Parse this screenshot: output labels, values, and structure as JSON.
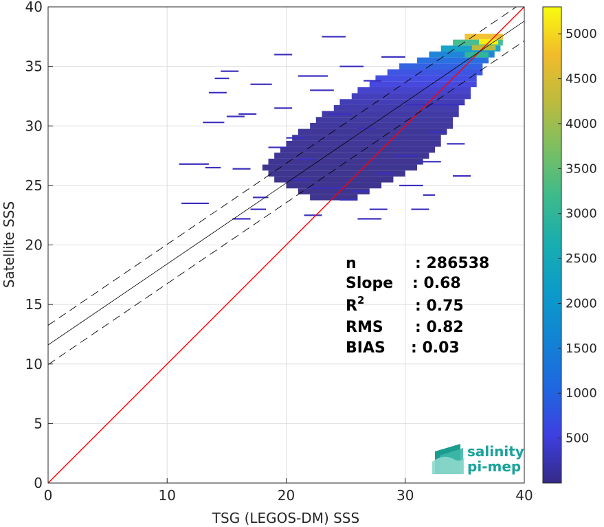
{
  "chart_data": {
    "type": "heatmap",
    "xlabel": "TSG (LEGOS-DM) SSS",
    "ylabel": "Satellite SSS",
    "xlim": [
      0,
      40
    ],
    "ylim": [
      0,
      40
    ],
    "x_ticks": [
      0,
      10,
      20,
      30,
      40
    ],
    "y_ticks": [
      0,
      5,
      10,
      15,
      20,
      25,
      30,
      35,
      40
    ],
    "grid": true,
    "colorbar": {
      "colormap": "parula",
      "range": [
        0,
        5300
      ],
      "ticks": [
        500,
        1000,
        1500,
        2000,
        2500,
        3000,
        3500,
        4000,
        4500,
        5000
      ]
    },
    "reference_line": {
      "name": "1:1",
      "color": "#ff0000",
      "points": [
        [
          0,
          0
        ],
        [
          40,
          40
        ]
      ]
    },
    "regression_line": {
      "slope": 0.68,
      "intercept": 11.6,
      "color": "#000000"
    },
    "confidence_lines": {
      "offset": 1.65,
      "style": "dashed",
      "color": "#000000"
    },
    "density_bands": [
      {
        "y": 37.5,
        "x0": 35.0,
        "x1": 38.2,
        "count": 4800
      },
      {
        "y": 37.0,
        "x0": 34.0,
        "x1": 38.2,
        "count": 3200
      },
      {
        "y": 36.5,
        "x0": 33.0,
        "x1": 38.0,
        "count": 2200
      },
      {
        "y": 36.0,
        "x0": 32.0,
        "x1": 37.5,
        "count": 1500
      },
      {
        "y": 35.5,
        "x0": 31.0,
        "x1": 37.0,
        "count": 1100
      },
      {
        "y": 35.0,
        "x0": 29.5,
        "x1": 36.5,
        "count": 900
      },
      {
        "y": 34.5,
        "x0": 28.5,
        "x1": 36.5,
        "count": 700
      },
      {
        "y": 34.0,
        "x0": 27.5,
        "x1": 36.0,
        "count": 600
      },
      {
        "y": 33.5,
        "x0": 27.0,
        "x1": 36.0,
        "count": 500
      },
      {
        "y": 33.0,
        "x0": 26.0,
        "x1": 35.5,
        "count": 400
      },
      {
        "y": 32.5,
        "x0": 25.5,
        "x1": 35.5,
        "count": 300
      },
      {
        "y": 32.0,
        "x0": 24.5,
        "x1": 35.0,
        "count": 250
      },
      {
        "y": 31.5,
        "x0": 24.0,
        "x1": 34.5,
        "count": 200
      },
      {
        "y": 31.0,
        "x0": 23.0,
        "x1": 34.5,
        "count": 150
      },
      {
        "y": 30.5,
        "x0": 22.5,
        "x1": 34.0,
        "count": 120
      },
      {
        "y": 30.0,
        "x0": 22.0,
        "x1": 34.0,
        "count": 100
      },
      {
        "y": 29.5,
        "x0": 21.0,
        "x1": 33.5,
        "count": 80
      },
      {
        "y": 29.0,
        "x0": 20.5,
        "x1": 33.0,
        "count": 70
      },
      {
        "y": 28.5,
        "x0": 20.0,
        "x1": 33.0,
        "count": 60
      },
      {
        "y": 28.0,
        "x0": 19.5,
        "x1": 32.5,
        "count": 50
      },
      {
        "y": 27.5,
        "x0": 19.0,
        "x1": 32.0,
        "count": 40
      },
      {
        "y": 27.0,
        "x0": 18.5,
        "x1": 31.5,
        "count": 30
      },
      {
        "y": 26.5,
        "x0": 18.0,
        "x1": 31.0,
        "count": 20
      },
      {
        "y": 26.0,
        "x0": 18.5,
        "x1": 30.0,
        "count": 20
      },
      {
        "y": 25.5,
        "x0": 19.0,
        "x1": 29.0,
        "count": 10
      },
      {
        "y": 25.0,
        "x0": 20.0,
        "x1": 28.0,
        "count": 10
      },
      {
        "y": 24.5,
        "x0": 21.0,
        "x1": 27.0,
        "count": 10
      },
      {
        "y": 24.0,
        "x0": 22.0,
        "x1": 26.0,
        "count": 10
      }
    ],
    "scatter_segments": [
      [
        11.2,
        23.5,
        13.5
      ],
      [
        17.2,
        24.0,
        18.5
      ],
      [
        14.5,
        34.6,
        16.0
      ],
      [
        17.0,
        33.5,
        18.8
      ],
      [
        23.0,
        37.5,
        25.0
      ],
      [
        19.0,
        36.0,
        20.5
      ],
      [
        30.0,
        31.8,
        35.0
      ],
      [
        21.0,
        34.2,
        23.5
      ],
      [
        13.5,
        32.8,
        15.0
      ],
      [
        16.0,
        31.0,
        17.5
      ],
      [
        15.0,
        30.8,
        16.5
      ],
      [
        13.0,
        30.3,
        14.8
      ],
      [
        11.0,
        26.8,
        13.5
      ],
      [
        13.2,
        26.5,
        14.5
      ],
      [
        15.5,
        26.4,
        17.0
      ],
      [
        17.0,
        23.0,
        18.3
      ],
      [
        15.5,
        22.2,
        17.0
      ],
      [
        21.5,
        22.5,
        23.0
      ],
      [
        22.0,
        24.8,
        25.0
      ],
      [
        26.0,
        22.2,
        28.0
      ],
      [
        24.5,
        23.8,
        26.0
      ],
      [
        27.5,
        26.0,
        29.0
      ],
      [
        29.5,
        25.0,
        31.5
      ],
      [
        29.0,
        27.5,
        31.0
      ],
      [
        30.5,
        23.0,
        32.0
      ],
      [
        31.0,
        27.0,
        33.0
      ],
      [
        32.0,
        29.5,
        33.5
      ],
      [
        33.5,
        28.5,
        35.0
      ],
      [
        20.0,
        29.0,
        21.5
      ],
      [
        18.5,
        28.2,
        20.0
      ],
      [
        19.0,
        31.5,
        20.5
      ],
      [
        22.0,
        33.0,
        24.0
      ],
      [
        24.5,
        35.0,
        26.5
      ],
      [
        26.5,
        33.8,
        28.0
      ],
      [
        28.0,
        35.8,
        30.0
      ],
      [
        20.5,
        25.5,
        22.0
      ],
      [
        25.5,
        24.5,
        27.0
      ],
      [
        14.0,
        34.0,
        15.2
      ],
      [
        26.0,
        29.8,
        27.5
      ],
      [
        23.5,
        31.0,
        25.5
      ],
      [
        34.0,
        25.8,
        35.5
      ],
      [
        31.5,
        24.2,
        32.5
      ],
      [
        27.0,
        23.0,
        28.5
      ],
      [
        21.0,
        27.2,
        22.5
      ]
    ],
    "stats": [
      {
        "label": "n",
        "value": ": 286538"
      },
      {
        "label": "Slope",
        "value": ": 0.68"
      },
      {
        "label": "R",
        "sup": "2",
        "value": ": 0.75"
      },
      {
        "label": "RMS",
        "value": ": 0.82"
      },
      {
        "label": "BIAS",
        "value": ": 0.03"
      }
    ]
  },
  "logo": {
    "line1": "salinity",
    "line2": "pi-mep"
  }
}
